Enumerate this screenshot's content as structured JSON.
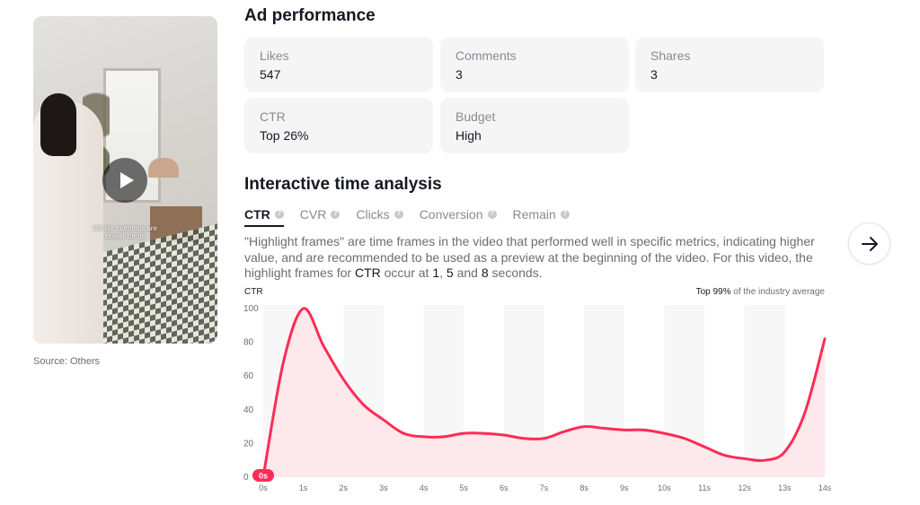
{
  "video": {
    "caption": "Winter mornings are slower for us",
    "source": "Source: Others"
  },
  "performance": {
    "title": "Ad performance",
    "stats": [
      {
        "label": "Likes",
        "value": "547"
      },
      {
        "label": "Comments",
        "value": "3"
      },
      {
        "label": "Shares",
        "value": "3"
      },
      {
        "label": "CTR",
        "value": "Top 26%"
      },
      {
        "label": "Budget",
        "value": "High"
      }
    ]
  },
  "analysis": {
    "title": "Interactive time analysis",
    "tabs": [
      {
        "label": "CTR",
        "active": true
      },
      {
        "label": "CVR",
        "active": false
      },
      {
        "label": "Clicks",
        "active": false
      },
      {
        "label": "Conversion",
        "active": false
      },
      {
        "label": "Remain",
        "active": false
      }
    ],
    "description_prefix": "\"Highlight frames\" are time frames in the video that performed well in specific metrics, indicating higher value, and are recommended to be used as a preview at the beginning of the video. For this video, the highlight frames for ",
    "description_metric": "CTR",
    "description_mid": " occur at ",
    "description_seconds": [
      "1",
      "5",
      "8"
    ],
    "description_and": " and ",
    "description_sep": ", ",
    "description_suffix": " seconds.",
    "chart_metric_label": "CTR",
    "benchmark_strong": "Top 99%",
    "benchmark_rest": " of the industry average",
    "marker_label": "0s"
  },
  "colors": {
    "line": "#fe2c55",
    "fill": "#fde6ea",
    "band_a": "#f7f7f8",
    "band_b": "#ffffff"
  },
  "chart_data": {
    "type": "area",
    "xlabel": "",
    "ylabel": "CTR",
    "ylim": [
      0,
      100
    ],
    "y_ticks": [
      0,
      20,
      40,
      60,
      80,
      100
    ],
    "x_ticks": [
      "0s",
      "1s",
      "2s",
      "3s",
      "4s",
      "5s",
      "6s",
      "7s",
      "8s",
      "9s",
      "10s",
      "11s",
      "12s",
      "13s",
      "14s"
    ],
    "x": [
      0,
      0.5,
      1,
      1.5,
      2,
      2.5,
      3,
      3.5,
      4,
      4.5,
      5,
      5.5,
      6,
      6.5,
      7,
      7.5,
      8,
      8.5,
      9,
      9.5,
      10,
      10.5,
      11,
      11.5,
      12,
      12.5,
      13,
      13.5,
      14
    ],
    "values": [
      0,
      68,
      100,
      78,
      58,
      43,
      34,
      26,
      24,
      24,
      26,
      26,
      25,
      23,
      23,
      27,
      30,
      29,
      28,
      28,
      26,
      23,
      18,
      13,
      11,
      10,
      15,
      38,
      82
    ]
  }
}
